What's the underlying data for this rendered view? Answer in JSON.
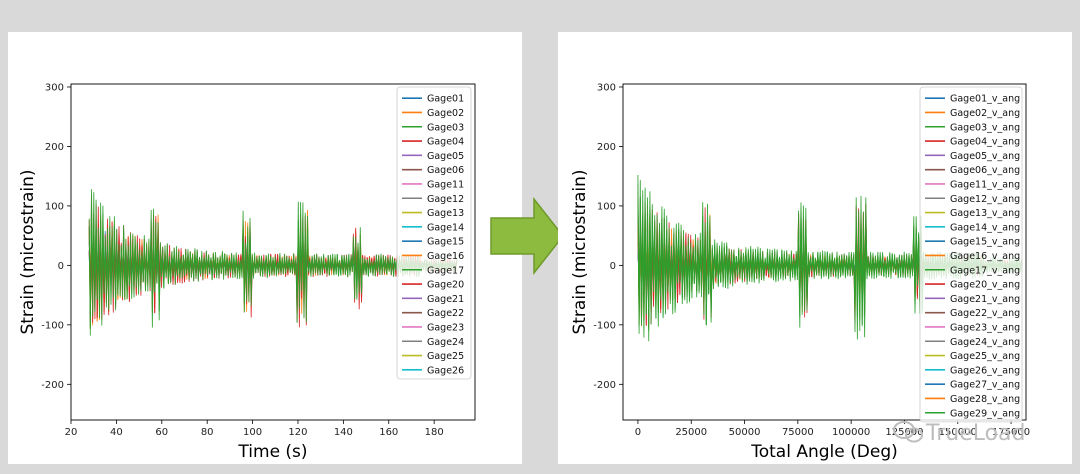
{
  "colors": {
    "arrow_fill": "#8cbb3f",
    "arrow_stroke": "#6f9a2a",
    "palette": [
      "#1f77b4",
      "#ff7f0e",
      "#2ca02c",
      "#d62728",
      "#9467bd",
      "#8c564b",
      "#e377c2",
      "#7f7f7f",
      "#bcbd22",
      "#17becf"
    ]
  },
  "watermark": "TrueLoad",
  "chart_data": [
    {
      "type": "line",
      "xlabel": "Time (s)",
      "ylabel": "Strain (microstrain)",
      "xlim": [
        20,
        198
      ],
      "ylim": [
        -260,
        305
      ],
      "xticks": [
        20,
        40,
        60,
        80,
        100,
        120,
        140,
        160,
        180
      ],
      "yticks": [
        -200,
        -100,
        0,
        100,
        200,
        300
      ],
      "grid": false,
      "legend_position": "top-right",
      "signal_range": [
        28,
        190
      ],
      "series": [
        {
          "name": "Gage01"
        },
        {
          "name": "Gage02"
        },
        {
          "name": "Gage03"
        },
        {
          "name": "Gage04"
        },
        {
          "name": "Gage05"
        },
        {
          "name": "Gage06"
        },
        {
          "name": "Gage11"
        },
        {
          "name": "Gage12"
        },
        {
          "name": "Gage13"
        },
        {
          "name": "Gage14"
        },
        {
          "name": "Gage15"
        },
        {
          "name": "Gage16"
        },
        {
          "name": "Gage17"
        },
        {
          "name": "Gage20"
        },
        {
          "name": "Gage21"
        },
        {
          "name": "Gage22"
        },
        {
          "name": "Gage23"
        },
        {
          "name": "Gage24"
        },
        {
          "name": "Gage25"
        },
        {
          "name": "Gage26"
        }
      ]
    },
    {
      "type": "line",
      "xlabel": "Total Angle (Deg)",
      "ylabel": "Strain (microstrain)",
      "xlim": [
        -7000,
        182000
      ],
      "ylim": [
        -260,
        305
      ],
      "xticks": [
        0,
        25000,
        50000,
        75000,
        100000,
        125000,
        150000,
        175000
      ],
      "xtick_labels": [
        "0",
        "25000",
        "50000",
        "75000",
        "100000",
        "125000",
        "150000",
        "175000"
      ],
      "yticks": [
        -200,
        -100,
        0,
        100,
        200,
        300
      ],
      "grid": false,
      "legend_position": "top-right",
      "signal_range": [
        0,
        180000
      ],
      "series": [
        {
          "name": "Gage01_v_ang"
        },
        {
          "name": "Gage02_v_ang"
        },
        {
          "name": "Gage03_v_ang"
        },
        {
          "name": "Gage04_v_ang"
        },
        {
          "name": "Gage05_v_ang"
        },
        {
          "name": "Gage06_v_ang"
        },
        {
          "name": "Gage11_v_ang"
        },
        {
          "name": "Gage12_v_ang"
        },
        {
          "name": "Gage13_v_ang"
        },
        {
          "name": "Gage14_v_ang"
        },
        {
          "name": "Gage15_v_ang"
        },
        {
          "name": "Gage16_v_ang"
        },
        {
          "name": "Gage17_v_ang"
        },
        {
          "name": "Gage20_v_ang"
        },
        {
          "name": "Gage21_v_ang"
        },
        {
          "name": "Gage22_v_ang"
        },
        {
          "name": "Gage23_v_ang"
        },
        {
          "name": "Gage24_v_ang"
        },
        {
          "name": "Gage25_v_ang"
        },
        {
          "name": "Gage26_v_ang"
        },
        {
          "name": "Gage27_v_ang"
        },
        {
          "name": "Gage28_v_ang"
        },
        {
          "name": "Gage29_v_ang"
        }
      ]
    }
  ]
}
